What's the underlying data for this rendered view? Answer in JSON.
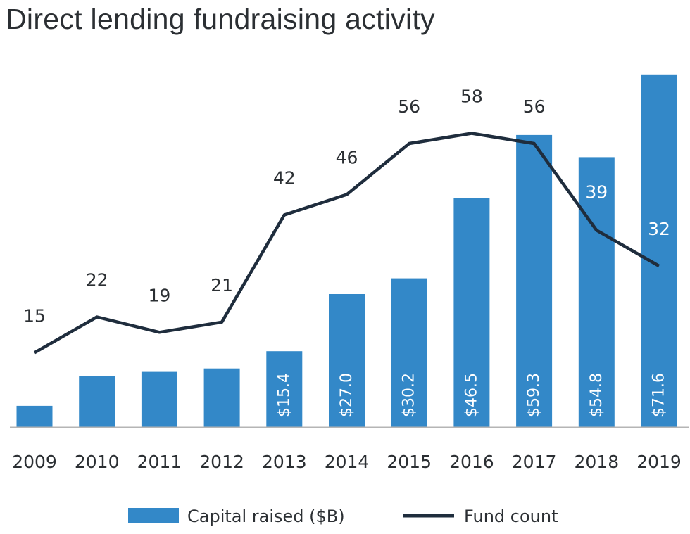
{
  "title": "Direct lending fundraising activity",
  "colors": {
    "bar": "#3388c8",
    "line": "#1f2d3d",
    "axis": "#b5b5b5",
    "text": "#2b2f33"
  },
  "chart_data": {
    "type": "bar",
    "title": "Direct lending fundraising activity",
    "xlabel": "",
    "ylabel": "",
    "categories": [
      "2009",
      "2010",
      "2011",
      "2012",
      "2013",
      "2014",
      "2015",
      "2016",
      "2017",
      "2018",
      "2019"
    ],
    "series": [
      {
        "name": "Capital raised ($B)",
        "type": "bar",
        "axis": "left",
        "values": [
          4.3,
          10.4,
          11.2,
          11.9,
          15.4,
          27.0,
          30.2,
          46.5,
          59.3,
          54.8,
          71.6
        ],
        "labels": [
          "",
          "",
          "",
          "",
          "$15.4",
          "$27.0",
          "$30.2",
          "$46.5",
          "$59.3",
          "$54.8",
          "$71.6"
        ]
      },
      {
        "name": "Fund count",
        "type": "line",
        "axis": "right",
        "values": [
          15,
          22,
          19,
          21,
          42,
          46,
          56,
          58,
          56,
          39,
          32
        ],
        "labels": [
          "15",
          "22",
          "19",
          "21",
          "42",
          "46",
          "56",
          "58",
          "56",
          "39",
          "32"
        ]
      }
    ],
    "ylim": [
      0,
      72
    ],
    "y2lim": [
      0,
      60
    ],
    "grid": false,
    "legend": "bottom"
  }
}
